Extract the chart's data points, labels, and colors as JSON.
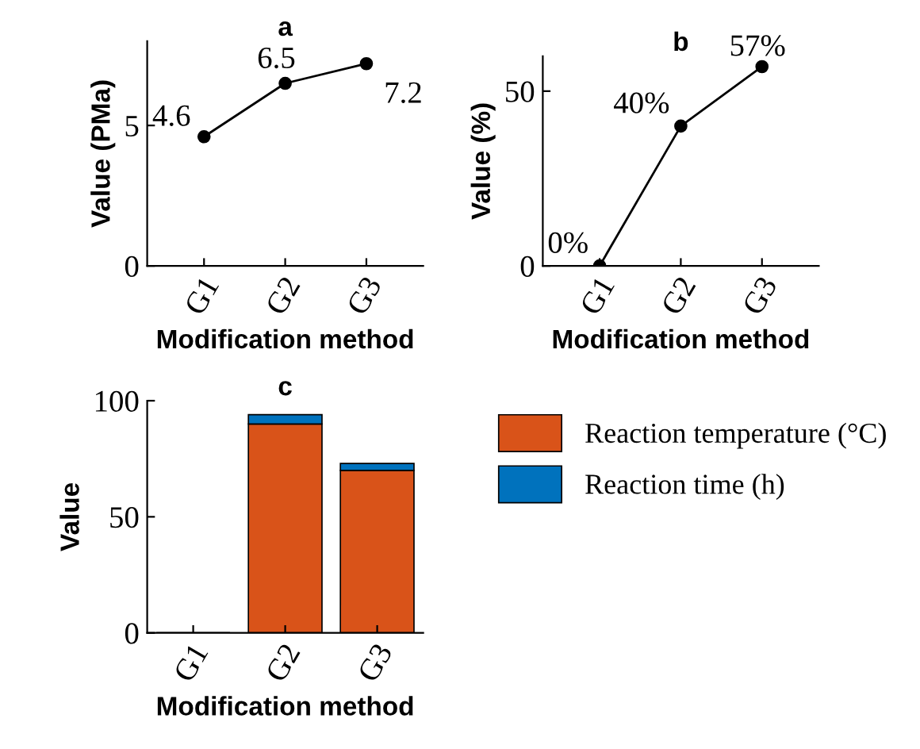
{
  "chart_data": [
    {
      "type": "line",
      "title": "a",
      "xlabel": "Modification method",
      "ylabel": "Value (PMa)",
      "categories": [
        "G1",
        "G2",
        "G3"
      ],
      "series": [
        {
          "color": "#000000",
          "values": [
            4.6,
            6.5,
            7.2
          ]
        }
      ],
      "data_labels": true,
      "marker": "circle",
      "ylim": [
        0,
        8
      ],
      "yticks": [
        0,
        5
      ],
      "grid": false,
      "legend": false
    },
    {
      "type": "line",
      "title": "b",
      "xlabel": "Modification method",
      "ylabel": "Value (%)",
      "categories": [
        "G1",
        "G2",
        "G3"
      ],
      "series": [
        {
          "color": "#000000",
          "values": [
            0,
            40,
            57
          ],
          "value_labels": [
            "0%",
            "40%",
            "57%"
          ]
        }
      ],
      "marker": "circle",
      "ylim": [
        0,
        60
      ],
      "yticks": [
        0,
        50
      ],
      "grid": false,
      "legend": false
    },
    {
      "type": "bar",
      "title": "c",
      "xlabel": "Modification method",
      "ylabel": "Value",
      "categories": [
        "G1",
        "G2",
        "G3"
      ],
      "stacked": true,
      "series": [
        {
          "name": "Reaction temperature (°C)",
          "color": "#d95319",
          "values": [
            0,
            90,
            70
          ]
        },
        {
          "name": "Reaction time (h)",
          "color": "#0072bd",
          "values": [
            0,
            4,
            3
          ]
        }
      ],
      "ylim": [
        0,
        100
      ],
      "yticks": [
        0,
        50,
        100
      ],
      "grid": false,
      "legend": "right"
    }
  ]
}
